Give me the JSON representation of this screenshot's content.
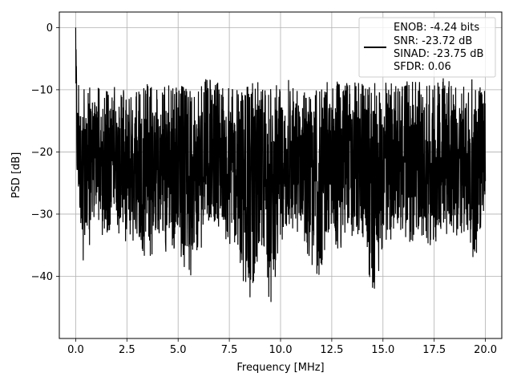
{
  "chart_data": {
    "type": "line",
    "title": "",
    "xlabel": "Frequency [MHz]",
    "ylabel": "PSD [dB]",
    "xlim": [
      -0.8,
      20.8
    ],
    "ylim": [
      -50,
      2.5
    ],
    "xticks": [
      0.0,
      2.5,
      5.0,
      7.5,
      10.0,
      12.5,
      15.0,
      17.5,
      20.0
    ],
    "xtick_labels": [
      "0.0",
      "2.5",
      "5.0",
      "7.5",
      "10.0",
      "12.5",
      "15.0",
      "17.5",
      "20.0"
    ],
    "yticks": [
      0,
      -10,
      -20,
      -30,
      -40
    ],
    "ytick_labels": [
      "0",
      "−10",
      "−20",
      "−30",
      "−40"
    ],
    "grid": true,
    "legend_position": "top-right",
    "legend_entries": [
      "ENOB: -4.24 bits",
      "SNR: -23.72 dB",
      "SINAD: -23.75 dB",
      "SFDR: 0.06"
    ],
    "line_color": "#000000",
    "series": [
      {
        "x": [
          0.0,
          0.025,
          0.05,
          0.08,
          0.12,
          0.16,
          0.2,
          0.25,
          0.3,
          0.35,
          0.4,
          0.45,
          0.5,
          0.55,
          0.6,
          0.65,
          0.7,
          0.75,
          0.8,
          0.9,
          1.0,
          1.2,
          1.4,
          1.6,
          1.8,
          2.0,
          2.5,
          3.0,
          3.5,
          4.0,
          4.5,
          5.0,
          5.5,
          6.0,
          6.5,
          7.0,
          7.5,
          8.0,
          8.5,
          9.0,
          9.5,
          10.0,
          10.5,
          11.0,
          11.5,
          12.0,
          12.5,
          13.0,
          13.5,
          14.0,
          14.5,
          15.0,
          15.5,
          16.0,
          16.5,
          17.0,
          17.5,
          18.0,
          18.5,
          19.0,
          19.5,
          20.0
        ],
        "upper": [
          0,
          -3,
          -6,
          -14,
          -9,
          -8,
          -11,
          -10,
          -12,
          -9,
          -8,
          -11,
          -12,
          -10,
          -9,
          -10,
          -9,
          -10,
          -11,
          -10,
          -9,
          -10,
          -11,
          -9,
          -10,
          -9,
          -10,
          -9,
          -9,
          -10,
          -9,
          -9,
          -10,
          -9,
          -8,
          -9,
          -9,
          -10,
          -9,
          -8,
          -9,
          -9,
          -8,
          -9,
          -9,
          -9,
          -8,
          -9,
          -8,
          -9,
          -9,
          -8,
          -9,
          -9,
          -8,
          -9,
          -9,
          -8,
          -9,
          -9,
          -8,
          -9
        ],
        "lower": [
          -13,
          -14,
          -26,
          -30,
          -31,
          -32,
          -33,
          -35,
          -31,
          -42,
          -36,
          -34,
          -32,
          -39,
          -34,
          -36,
          -35,
          -34,
          -33,
          -32,
          -31,
          -33,
          -35,
          -33,
          -32,
          -33,
          -36,
          -34,
          -38,
          -35,
          -37,
          -35,
          -42,
          -36,
          -34,
          -34,
          -35,
          -38,
          -47,
          -34,
          -45,
          -36,
          -34,
          -33,
          -40,
          -40,
          -35,
          -36,
          -34,
          -35,
          -44,
          -36,
          -34,
          -34,
          -35,
          -34,
          -37,
          -33,
          -34,
          -33,
          -38,
          -29
        ]
      }
    ]
  }
}
